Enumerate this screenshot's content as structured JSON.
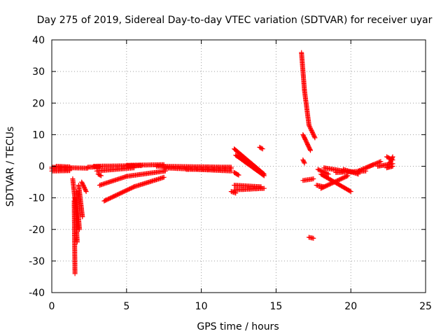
{
  "chart_data": {
    "type": "scatter",
    "title": "Day 275 of 2019, Sidereal Day-to-day VTEC variation (SDTVAR) for receiver uyar",
    "xlabel": "GPS time / hours",
    "ylabel": "SDTVAR / TECUs",
    "xlim": [
      0,
      25
    ],
    "ylim": [
      -40,
      40
    ],
    "xticks": [
      0,
      5,
      10,
      15,
      20,
      25
    ],
    "yticks": [
      -40,
      -30,
      -20,
      -10,
      0,
      10,
      20,
      30,
      40
    ],
    "grid": true,
    "marker": "plus",
    "color": "#ff0000",
    "series": [
      {
        "name": "SDTVAR",
        "segments": [
          {
            "from": [
              0.0,
              -0.8
            ],
            "to": [
              1.2,
              -1.0
            ]
          },
          {
            "from": [
              0.0,
              -0.3
            ],
            "to": [
              1.2,
              -0.5
            ]
          },
          {
            "from": [
              0.0,
              -1.5
            ],
            "to": [
              1.2,
              -1.4
            ]
          },
          {
            "from": [
              0.3,
              0.0
            ],
            "to": [
              1.2,
              -0.2
            ]
          },
          {
            "from": [
              1.2,
              -0.5
            ],
            "to": [
              2.4,
              -0.6
            ]
          },
          {
            "from": [
              1.4,
              -4.0
            ],
            "to": [
              1.55,
              -10.5
            ]
          },
          {
            "from": [
              1.5,
              -11.0
            ],
            "to": [
              1.55,
              -34.0
            ]
          },
          {
            "from": [
              1.55,
              -10.0
            ],
            "to": [
              1.7,
              -24.0
            ]
          },
          {
            "from": [
              1.65,
              -8.0
            ],
            "to": [
              1.85,
              -20.0
            ]
          },
          {
            "from": [
              1.8,
              -6.0
            ],
            "to": [
              2.05,
              -16.0
            ]
          },
          {
            "from": [
              2.0,
              -5.0
            ],
            "to": [
              2.3,
              -8.0
            ]
          },
          {
            "from": [
              2.4,
              -0.3
            ],
            "to": [
              3.2,
              -0.2
            ]
          },
          {
            "from": [
              2.8,
              0.0
            ],
            "to": [
              6.0,
              0.2
            ]
          },
          {
            "from": [
              3.0,
              -1.5
            ],
            "to": [
              5.5,
              -0.5
            ]
          },
          {
            "from": [
              3.1,
              -2.5
            ],
            "to": [
              3.3,
              -3.0
            ]
          },
          {
            "from": [
              3.2,
              -6.0
            ],
            "to": [
              5.0,
              -3.2
            ]
          },
          {
            "from": [
              5.0,
              -3.2
            ],
            "to": [
              7.6,
              -1.5
            ]
          },
          {
            "from": [
              3.5,
              -11.0
            ],
            "to": [
              5.5,
              -6.5
            ]
          },
          {
            "from": [
              5.5,
              -6.5
            ],
            "to": [
              7.5,
              -3.5
            ]
          },
          {
            "from": [
              5.0,
              0.3
            ],
            "to": [
              7.5,
              0.5
            ]
          },
          {
            "from": [
              7.0,
              0.0
            ],
            "to": [
              12.0,
              -0.3
            ]
          },
          {
            "from": [
              7.5,
              -0.5
            ],
            "to": [
              12.0,
              -1.5
            ]
          },
          {
            "from": [
              9.0,
              -1.0
            ],
            "to": [
              12.0,
              -0.8
            ]
          },
          {
            "from": [
              12.2,
              5.5
            ],
            "to": [
              14.2,
              -2.5
            ]
          },
          {
            "from": [
              12.3,
              3.5
            ],
            "to": [
              14.2,
              -3.0
            ]
          },
          {
            "from": [
              12.2,
              -2.0
            ],
            "to": [
              12.5,
              -2.8
            ]
          },
          {
            "from": [
              12.2,
              -6.0
            ],
            "to": [
              14.0,
              -6.5
            ]
          },
          {
            "from": [
              12.2,
              -7.5
            ],
            "to": [
              14.2,
              -7.0
            ]
          },
          {
            "from": [
              12.0,
              -8.0
            ],
            "to": [
              12.3,
              -8.5
            ]
          },
          {
            "from": [
              13.9,
              6.0
            ],
            "to": [
              14.1,
              5.5
            ]
          },
          {
            "from": [
              16.7,
              36.0
            ],
            "to": [
              16.9,
              24.0
            ]
          },
          {
            "from": [
              16.9,
              24.0
            ],
            "to": [
              17.2,
              13.0
            ]
          },
          {
            "from": [
              17.2,
              13.0
            ],
            "to": [
              17.6,
              9.0
            ]
          },
          {
            "from": [
              16.8,
              10.0
            ],
            "to": [
              17.3,
              5.0
            ]
          },
          {
            "from": [
              16.8,
              2.0
            ],
            "to": [
              16.9,
              1.0
            ]
          },
          {
            "from": [
              16.8,
              -4.5
            ],
            "to": [
              17.5,
              -4.0
            ]
          },
          {
            "from": [
              17.2,
              -22.5
            ],
            "to": [
              17.5,
              -22.8
            ]
          },
          {
            "from": [
              17.8,
              -1.0
            ],
            "to": [
              18.5,
              -2.5
            ]
          },
          {
            "from": [
              17.7,
              -6.0
            ],
            "to": [
              18.2,
              -6.5
            ]
          },
          {
            "from": [
              18.0,
              -2.5
            ],
            "to": [
              20.0,
              -8.0
            ]
          },
          {
            "from": [
              18.0,
              -7.0
            ],
            "to": [
              19.8,
              -3.0
            ]
          },
          {
            "from": [
              18.2,
              -0.5
            ],
            "to": [
              19.5,
              -1.5
            ]
          },
          {
            "from": [
              19.0,
              -2.0
            ],
            "to": [
              21.0,
              -1.5
            ]
          },
          {
            "from": [
              19.5,
              -1.0
            ],
            "to": [
              20.5,
              -2.5
            ]
          },
          {
            "from": [
              20.5,
              -1.5
            ],
            "to": [
              21.5,
              0.5
            ]
          },
          {
            "from": [
              21.0,
              -0.5
            ],
            "to": [
              22.0,
              1.5
            ]
          },
          {
            "from": [
              21.8,
              0.0
            ],
            "to": [
              22.8,
              0.8
            ]
          },
          {
            "from": [
              22.4,
              3.0
            ],
            "to": [
              22.8,
              2.0
            ]
          },
          {
            "from": [
              22.4,
              -0.5
            ],
            "to": [
              22.8,
              0.0
            ]
          },
          {
            "from": [
              22.6,
              1.0
            ],
            "to": [
              22.8,
              3.0
            ]
          }
        ]
      }
    ]
  }
}
